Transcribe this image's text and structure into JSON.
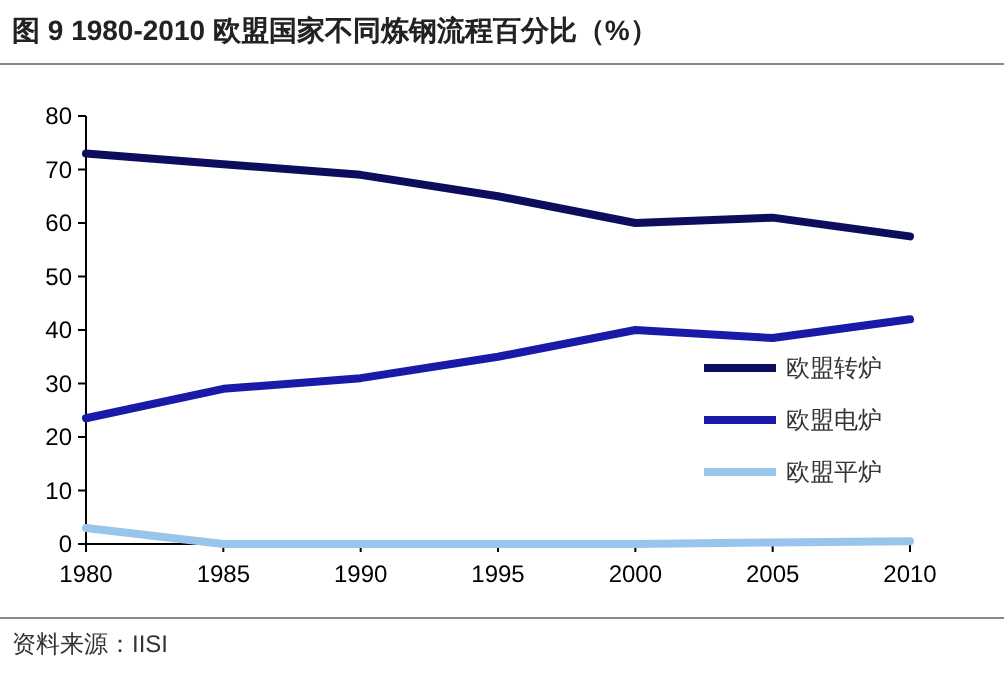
{
  "chart_data": {
    "type": "line",
    "title": "图 9 1980-2010 欧盟国家不同炼钢流程百分比（%）",
    "x": [
      1980,
      1985,
      1990,
      1995,
      2000,
      2005,
      2010
    ],
    "series": [
      {
        "name": "欧盟转炉",
        "color": "#0d0d5e",
        "values": [
          73,
          71,
          69,
          65,
          60,
          61,
          57.5
        ]
      },
      {
        "name": "欧盟电炉",
        "color": "#1a1aa8",
        "values": [
          23.5,
          29,
          31,
          35,
          40,
          38.5,
          42
        ]
      },
      {
        "name": "欧盟平炉",
        "color": "#99c4ec",
        "values": [
          3,
          0,
          0,
          0,
          0,
          0.3,
          0.5
        ]
      }
    ],
    "xlim": [
      1980,
      2010
    ],
    "xticks": [
      1980,
      1985,
      1990,
      1995,
      2000,
      2005,
      2010
    ],
    "ylim": [
      0,
      80
    ],
    "yticks": [
      0,
      10,
      20,
      30,
      40,
      50,
      60,
      70,
      80
    ],
    "legend": "right",
    "grid": false,
    "marker": "none",
    "line_style": "solid",
    "annotations": [
      "资料来源：IISI"
    ]
  }
}
